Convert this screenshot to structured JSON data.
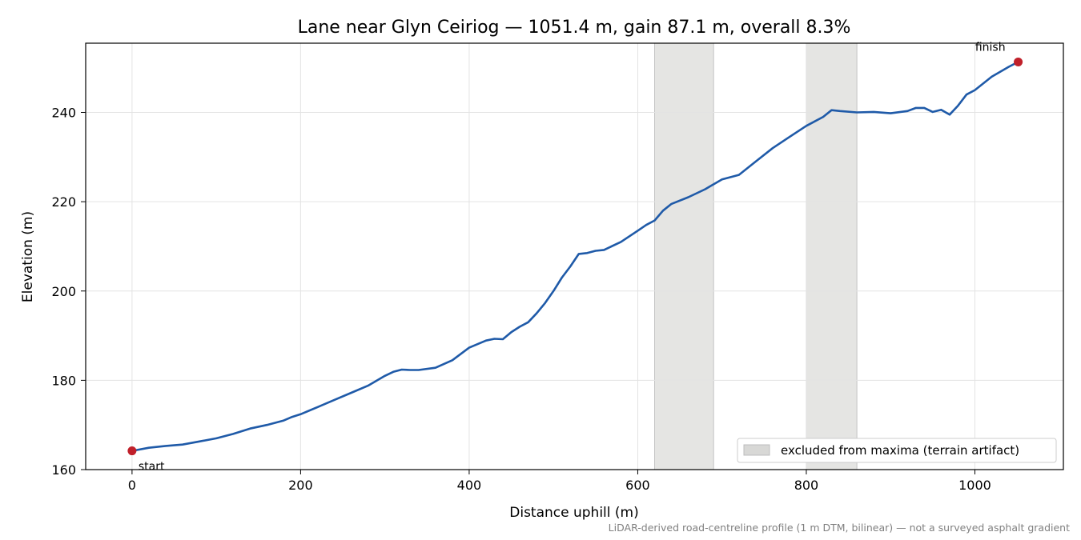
{
  "chart_data": {
    "type": "line",
    "title": "Lane near Glyn Ceiriog — 1051.4 m, gain 87.1 m, overall 8.3%",
    "xlabel": "Distance uphill (m)",
    "ylabel": "Elevation (m)",
    "xlim": [
      -55,
      1105
    ],
    "ylim": [
      160,
      255.5
    ],
    "xticks": [
      0,
      200,
      400,
      600,
      800,
      1000
    ],
    "yticks": [
      160,
      180,
      200,
      220,
      240
    ],
    "grid": true,
    "line_color": "#1f5aa8",
    "marker_color": "#c0202a",
    "band_color": "#d8d8d6",
    "series": [
      {
        "x": [
          0,
          20,
          40,
          60,
          80,
          100,
          120,
          140,
          160,
          180,
          190,
          200,
          220,
          240,
          260,
          280,
          300,
          310,
          320,
          330,
          340,
          360,
          380,
          400,
          420,
          430,
          440,
          450,
          460,
          470,
          480,
          490,
          500,
          510,
          520,
          530,
          540,
          550,
          560,
          580,
          600,
          610,
          620,
          630,
          640,
          660,
          680,
          700,
          720,
          740,
          760,
          780,
          800,
          820,
          830,
          840,
          860,
          880,
          900,
          920,
          930,
          940,
          950,
          960,
          970,
          980,
          990,
          1000,
          1020,
          1040,
          1051.4
        ],
        "y": [
          164.2,
          164.9,
          165.3,
          165.6,
          166.3,
          167.0,
          168.0,
          169.2,
          170.0,
          171.0,
          171.8,
          172.4,
          174.0,
          175.6,
          177.2,
          178.8,
          181.0,
          181.9,
          182.4,
          182.3,
          182.3,
          182.8,
          184.5,
          187.3,
          188.9,
          189.3,
          189.2,
          190.8,
          192.0,
          193.0,
          195.0,
          197.3,
          200.0,
          203.0,
          205.5,
          208.3,
          208.5,
          209.0,
          209.2,
          211.0,
          213.5,
          214.8,
          215.8,
          218.0,
          219.5,
          221.0,
          222.8,
          225.0,
          226.0,
          229.0,
          232.0,
          234.5,
          237.0,
          239.0,
          240.5,
          240.3,
          240.0,
          240.1,
          239.8,
          240.3,
          241.0,
          241.0,
          240.1,
          240.6,
          239.5,
          241.5,
          244.0,
          245.0,
          248.0,
          250.2,
          251.3
        ]
      }
    ],
    "excluded_bands": [
      [
        620,
        690
      ],
      [
        800,
        860
      ]
    ],
    "markers": [
      {
        "label": "start",
        "x": 0,
        "y": 164.2
      },
      {
        "label": "finish",
        "x": 1051.4,
        "y": 251.3
      }
    ],
    "legend": {
      "label": "excluded from maxima (terrain artifact)",
      "position": "lower-right"
    },
    "footnote": "LiDAR-derived road-centreline profile (1 m DTM, bilinear) — not a surveyed asphalt gradient"
  }
}
